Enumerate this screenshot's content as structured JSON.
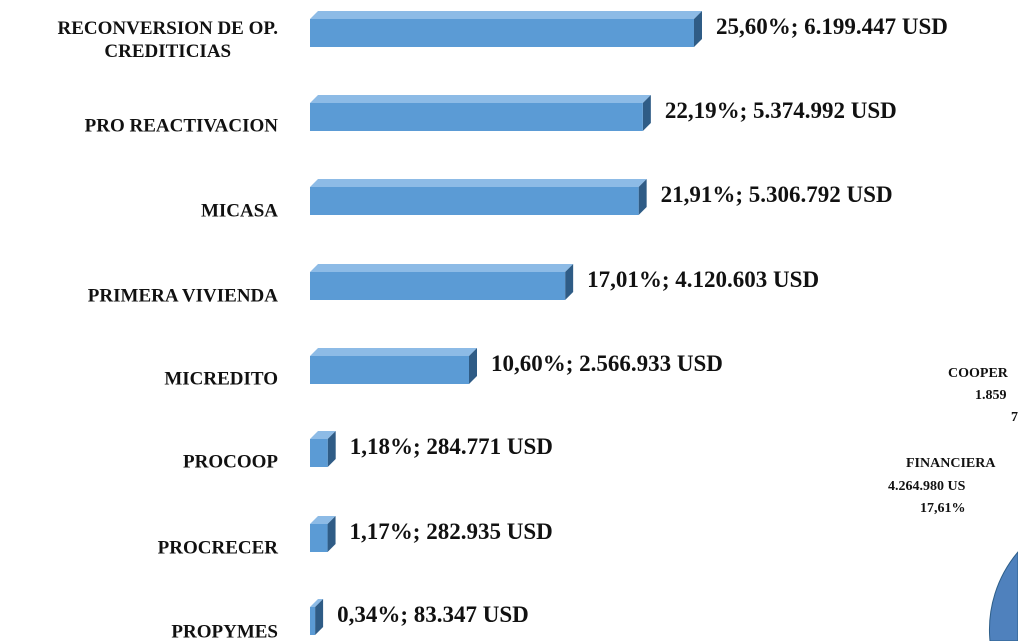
{
  "chart_data": {
    "type": "hbar3d",
    "categories": [
      "RECONVERSION DE OP.\nCREDITICIAS",
      "PRO REACTIVACION",
      "MICASA",
      "PRIMERA VIVIENDA",
      "MICREDITO",
      "PROCOOP",
      "PROCRECER",
      "PROPYMES"
    ],
    "values": [
      25.6,
      22.19,
      21.91,
      17.01,
      10.6,
      1.18,
      1.17,
      0.34
    ],
    "value_labels": [
      "25,60%; 6.199.447 USD",
      "22,19%; 5.374.992 USD",
      "21,91%; 5.306.792 USD",
      "17,01%; 4.120.603 USD",
      "10,60%; 2.566.933 USD",
      "1,18%; 284.771 USD",
      "1,17%; 282.935 USD",
      "0,34%; 83.347 USD"
    ],
    "color": "#5b9bd5",
    "annotations": [
      "COOPER",
      "1.859",
      "7",
      "FINANCIERA",
      "4.264.980 US",
      "17,61%"
    ]
  }
}
